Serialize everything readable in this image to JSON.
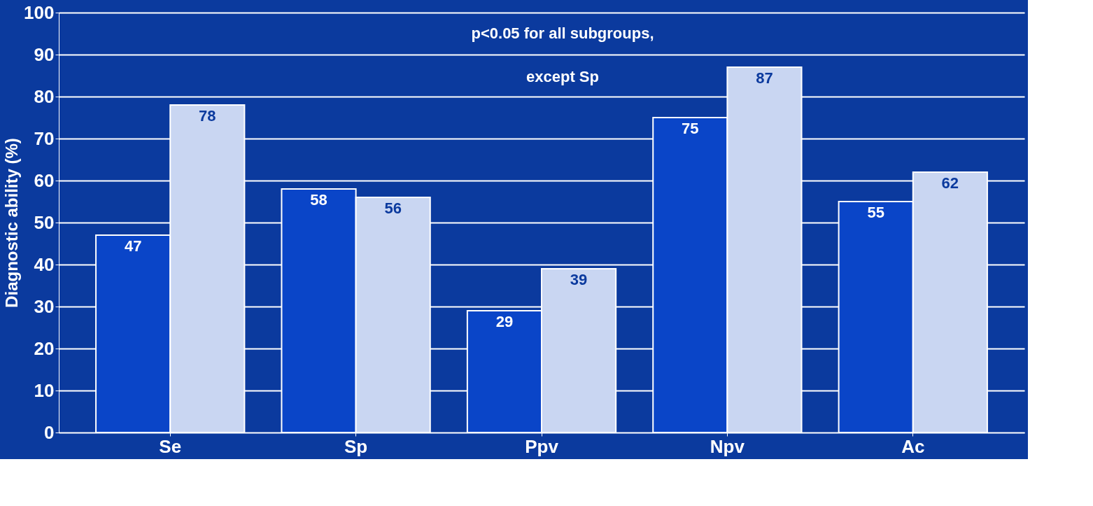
{
  "chart_data": {
    "type": "bar",
    "ylabel": "Diagnostic ability (%)",
    "categories": [
      "Se",
      "Sp",
      "Ppv",
      "Npv",
      "Ac"
    ],
    "series": [
      {
        "color": "#0a45c8",
        "values": [
          47,
          58,
          29,
          75,
          55
        ]
      },
      {
        "color": "#c9d6f2",
        "values": [
          78,
          56,
          39,
          87,
          62
        ]
      }
    ],
    "ylim": [
      0,
      100
    ],
    "yticks": [
      0,
      10,
      20,
      30,
      40,
      50,
      60,
      70,
      80,
      90,
      100
    ],
    "grid": "y",
    "legend": false,
    "data_labels": true,
    "annotations": [
      "p<0.05 for all subgroups,",
      "except Sp"
    ]
  }
}
